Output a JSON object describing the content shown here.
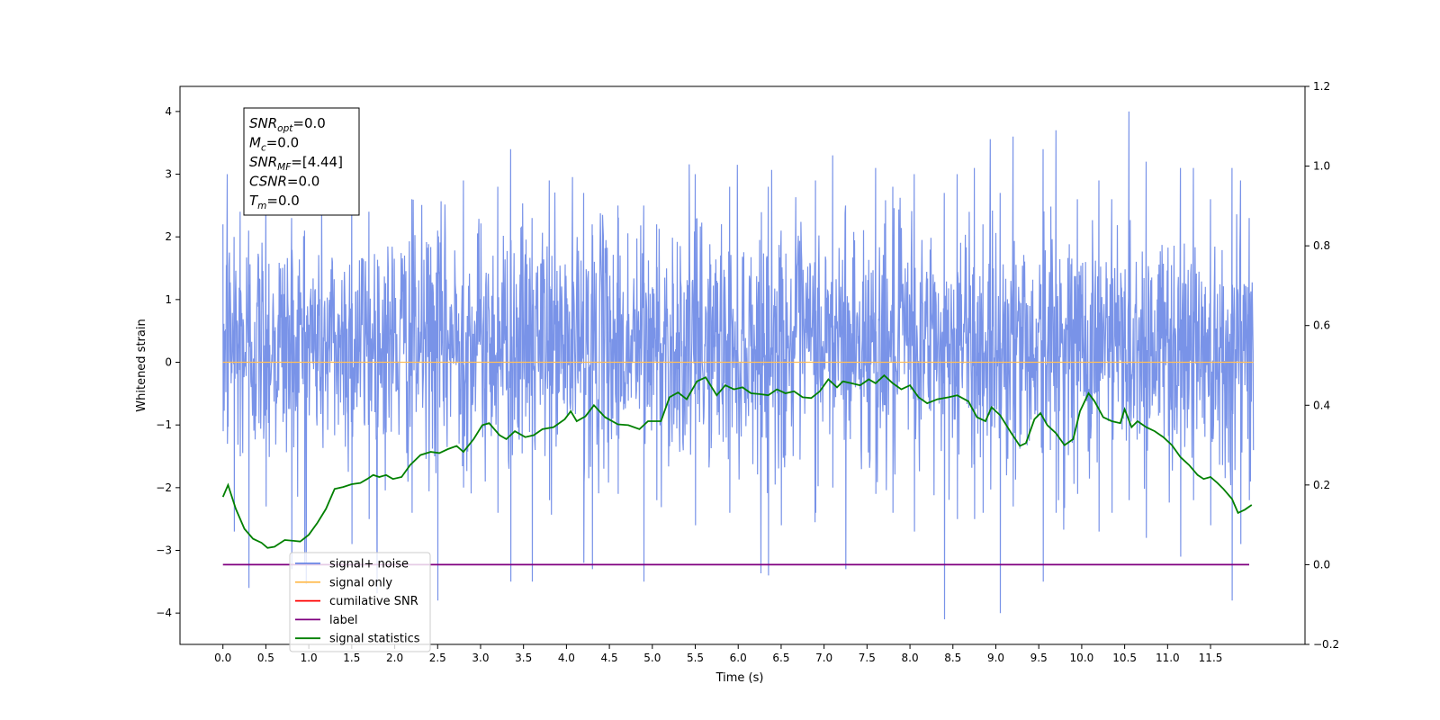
{
  "chart_data": {
    "type": "line",
    "xlabel": "Time (s)",
    "ylabel": "Whitened strain",
    "xlim": [
      -0.5,
      12.6
    ],
    "ylim": [
      -4.5,
      4.4
    ],
    "y2lim": [
      -0.2,
      1.2
    ],
    "x_ticks": [
      0.0,
      0.5,
      1.0,
      1.5,
      2.0,
      2.5,
      3.0,
      3.5,
      4.0,
      4.5,
      5.0,
      5.5,
      6.0,
      6.5,
      7.0,
      7.5,
      8.0,
      8.5,
      9.0,
      9.5,
      10.0,
      10.5,
      11.0,
      11.5
    ],
    "x_tick_labels": [
      "0.0",
      "0.5",
      "1.0",
      "1.5",
      "2.0",
      "2.5",
      "3.0",
      "3.5",
      "4.0",
      "4.5",
      "5.0",
      "5.5",
      "6.0",
      "6.5",
      "7.0",
      "7.5",
      "8.0",
      "8.5",
      "9.0",
      "9.5",
      "10.0",
      "10.5",
      "11.0",
      "11.5"
    ],
    "y_ticks": [
      4,
      3,
      2,
      1,
      0,
      -1,
      -2,
      -3,
      -4
    ],
    "y_tick_labels": [
      "4",
      "3",
      "2",
      "1",
      "0",
      "−1",
      "−2",
      "−3",
      "−4"
    ],
    "y2_ticks": [
      1.2,
      1.0,
      0.8,
      0.6,
      0.4,
      0.2,
      0.0,
      -0.2
    ],
    "y2_tick_labels": [
      "1.2",
      "1.0",
      "0.8",
      "0.6",
      "0.4",
      "0.2",
      "0.0",
      "−0.2"
    ],
    "grid": false,
    "legend_position": "lower-left",
    "series": [
      {
        "name": "signal+ noise",
        "color": "#6a87e6",
        "axis": "left",
        "x_range": [
          0.0,
          12.0
        ],
        "peaks": [
          [
            0.0,
            2.2,
            -1.1
          ],
          [
            0.05,
            3.0,
            -1.3
          ],
          [
            0.13,
            2.0,
            -2.7
          ],
          [
            0.2,
            2.4,
            -1.5
          ],
          [
            0.3,
            2.1,
            -3.6
          ],
          [
            0.5,
            2.6,
            -2.3
          ],
          [
            0.8,
            2.3,
            -3.3
          ],
          [
            0.95,
            2.1,
            -3.2
          ],
          [
            1.5,
            2.8,
            -2.9
          ],
          [
            1.7,
            2.4,
            -2.5
          ],
          [
            2.2,
            2.6,
            -2.4
          ],
          [
            2.5,
            2.1,
            -3.8
          ],
          [
            2.8,
            2.9,
            -2.0
          ],
          [
            3.2,
            2.8,
            -2.4
          ],
          [
            3.35,
            3.4,
            -3.5
          ],
          [
            3.6,
            2.3,
            -3.5
          ],
          [
            3.8,
            2.9,
            -2.2
          ],
          [
            4.2,
            2.7,
            -3.2
          ],
          [
            4.3,
            2.2,
            -3.3
          ],
          [
            4.6,
            2.5,
            -2.1
          ],
          [
            4.9,
            2.5,
            -3.5
          ],
          [
            5.05,
            2.2,
            -2.2
          ],
          [
            5.5,
            3.0,
            -2.6
          ],
          [
            5.9,
            2.8,
            -2.4
          ],
          [
            6.35,
            2.8,
            -3.4
          ],
          [
            6.5,
            2.1,
            -2.6
          ],
          [
            6.9,
            2.9,
            -2.4
          ],
          [
            7.1,
            3.3,
            -2.0
          ],
          [
            7.25,
            2.5,
            -3.3
          ],
          [
            7.6,
            3.1,
            -2.1
          ],
          [
            7.8,
            2.8,
            -2.4
          ],
          [
            8.05,
            3.0,
            -2.7
          ],
          [
            8.4,
            2.7,
            -4.1
          ],
          [
            8.55,
            3.0,
            -2.5
          ],
          [
            8.75,
            3.1,
            -2.5
          ],
          [
            8.85,
            2.2,
            -2.4
          ],
          [
            9.05,
            2.7,
            -4.0
          ],
          [
            9.2,
            3.6,
            -2.3
          ],
          [
            9.55,
            3.4,
            -3.5
          ],
          [
            9.7,
            3.7,
            -2.4
          ],
          [
            9.95,
            2.6,
            -2.1
          ],
          [
            10.2,
            2.9,
            -2.7
          ],
          [
            10.35,
            2.6,
            -2.4
          ],
          [
            10.55,
            4.0,
            -2.2
          ],
          [
            10.75,
            3.2,
            -2.8
          ],
          [
            11.15,
            3.1,
            -3.1
          ],
          [
            11.3,
            3.1,
            -2.2
          ],
          [
            11.5,
            2.6,
            -2.6
          ],
          [
            11.75,
            3.1,
            -3.8
          ],
          [
            11.85,
            2.9,
            -2.9
          ],
          [
            11.95,
            2.3,
            -2.2
          ]
        ]
      },
      {
        "name": "signal only",
        "color": "#ffbf59",
        "axis": "left",
        "points": [
          [
            0.0,
            0.0
          ],
          [
            12.0,
            0.0
          ]
        ]
      },
      {
        "name": "cumilative SNR",
        "color": "#ff0000",
        "axis": "right",
        "points": []
      },
      {
        "name": "label",
        "color": "#800080",
        "axis": "right",
        "points": [
          [
            0.0,
            0.0
          ],
          [
            11.95,
            0.0
          ]
        ]
      },
      {
        "name": "signal statistics",
        "color": "#008000",
        "axis": "right",
        "points": [
          [
            0.0,
            0.17
          ],
          [
            0.06,
            0.2
          ],
          [
            0.15,
            0.14
          ],
          [
            0.25,
            0.09
          ],
          [
            0.35,
            0.065
          ],
          [
            0.45,
            0.055
          ],
          [
            0.52,
            0.042
          ],
          [
            0.6,
            0.045
          ],
          [
            0.72,
            0.062
          ],
          [
            0.82,
            0.06
          ],
          [
            0.9,
            0.058
          ],
          [
            1.0,
            0.075
          ],
          [
            1.1,
            0.105
          ],
          [
            1.2,
            0.14
          ],
          [
            1.3,
            0.19
          ],
          [
            1.4,
            0.195
          ],
          [
            1.5,
            0.202
          ],
          [
            1.6,
            0.205
          ],
          [
            1.68,
            0.215
          ],
          [
            1.75,
            0.225
          ],
          [
            1.82,
            0.22
          ],
          [
            1.9,
            0.225
          ],
          [
            1.98,
            0.215
          ],
          [
            2.08,
            0.22
          ],
          [
            2.18,
            0.25
          ],
          [
            2.3,
            0.275
          ],
          [
            2.42,
            0.283
          ],
          [
            2.52,
            0.28
          ],
          [
            2.62,
            0.29
          ],
          [
            2.72,
            0.298
          ],
          [
            2.8,
            0.283
          ],
          [
            2.92,
            0.315
          ],
          [
            3.02,
            0.35
          ],
          [
            3.1,
            0.355
          ],
          [
            3.22,
            0.325
          ],
          [
            3.3,
            0.315
          ],
          [
            3.4,
            0.335
          ],
          [
            3.52,
            0.32
          ],
          [
            3.62,
            0.325
          ],
          [
            3.72,
            0.34
          ],
          [
            3.85,
            0.345
          ],
          [
            3.98,
            0.365
          ],
          [
            4.05,
            0.385
          ],
          [
            4.12,
            0.36
          ],
          [
            4.22,
            0.372
          ],
          [
            4.32,
            0.4
          ],
          [
            4.45,
            0.37
          ],
          [
            4.6,
            0.352
          ],
          [
            4.72,
            0.35
          ],
          [
            4.85,
            0.34
          ],
          [
            4.95,
            0.36
          ],
          [
            5.1,
            0.36
          ],
          [
            5.2,
            0.42
          ],
          [
            5.3,
            0.432
          ],
          [
            5.4,
            0.415
          ],
          [
            5.52,
            0.46
          ],
          [
            5.62,
            0.47
          ],
          [
            5.75,
            0.425
          ],
          [
            5.85,
            0.45
          ],
          [
            5.95,
            0.44
          ],
          [
            6.05,
            0.445
          ],
          [
            6.15,
            0.43
          ],
          [
            6.25,
            0.428
          ],
          [
            6.35,
            0.425
          ],
          [
            6.45,
            0.44
          ],
          [
            6.55,
            0.43
          ],
          [
            6.65,
            0.435
          ],
          [
            6.75,
            0.42
          ],
          [
            6.85,
            0.418
          ],
          [
            6.95,
            0.435
          ],
          [
            7.05,
            0.465
          ],
          [
            7.15,
            0.445
          ],
          [
            7.22,
            0.46
          ],
          [
            7.32,
            0.455
          ],
          [
            7.42,
            0.45
          ],
          [
            7.52,
            0.465
          ],
          [
            7.6,
            0.455
          ],
          [
            7.7,
            0.475
          ],
          [
            7.8,
            0.455
          ],
          [
            7.9,
            0.44
          ],
          [
            8.0,
            0.45
          ],
          [
            8.1,
            0.42
          ],
          [
            8.2,
            0.405
          ],
          [
            8.32,
            0.415
          ],
          [
            8.45,
            0.42
          ],
          [
            8.55,
            0.425
          ],
          [
            8.68,
            0.41
          ],
          [
            8.78,
            0.37
          ],
          [
            8.88,
            0.36
          ],
          [
            8.95,
            0.395
          ],
          [
            9.05,
            0.375
          ],
          [
            9.18,
            0.33
          ],
          [
            9.28,
            0.298
          ],
          [
            9.35,
            0.305
          ],
          [
            9.45,
            0.365
          ],
          [
            9.52,
            0.38
          ],
          [
            9.6,
            0.35
          ],
          [
            9.7,
            0.33
          ],
          [
            9.8,
            0.3
          ],
          [
            9.9,
            0.315
          ],
          [
            9.98,
            0.385
          ],
          [
            10.08,
            0.43
          ],
          [
            10.15,
            0.41
          ],
          [
            10.25,
            0.37
          ],
          [
            10.35,
            0.36
          ],
          [
            10.45,
            0.355
          ],
          [
            10.5,
            0.39
          ],
          [
            10.58,
            0.345
          ],
          [
            10.65,
            0.36
          ],
          [
            10.75,
            0.345
          ],
          [
            10.85,
            0.335
          ],
          [
            10.95,
            0.32
          ],
          [
            11.05,
            0.3
          ],
          [
            11.15,
            0.27
          ],
          [
            11.25,
            0.25
          ],
          [
            11.35,
            0.225
          ],
          [
            11.42,
            0.215
          ],
          [
            11.5,
            0.22
          ],
          [
            11.58,
            0.205
          ],
          [
            11.65,
            0.19
          ],
          [
            11.75,
            0.165
          ],
          [
            11.82,
            0.13
          ],
          [
            11.9,
            0.138
          ],
          [
            11.98,
            0.15
          ]
        ]
      }
    ],
    "annotation_lines": [
      {
        "sym": "SNR",
        "sub": "opt",
        "rest": "=0.0"
      },
      {
        "sym": "M",
        "sub": "c",
        "rest": "=0.0"
      },
      {
        "sym": "SNR",
        "sub": "MF",
        "rest": "=[4.44]"
      },
      {
        "sym": "CSNR",
        "sub": "",
        "rest": "=0.0"
      },
      {
        "sym": "T",
        "sub": "m",
        "rest": "=0.0"
      }
    ]
  }
}
